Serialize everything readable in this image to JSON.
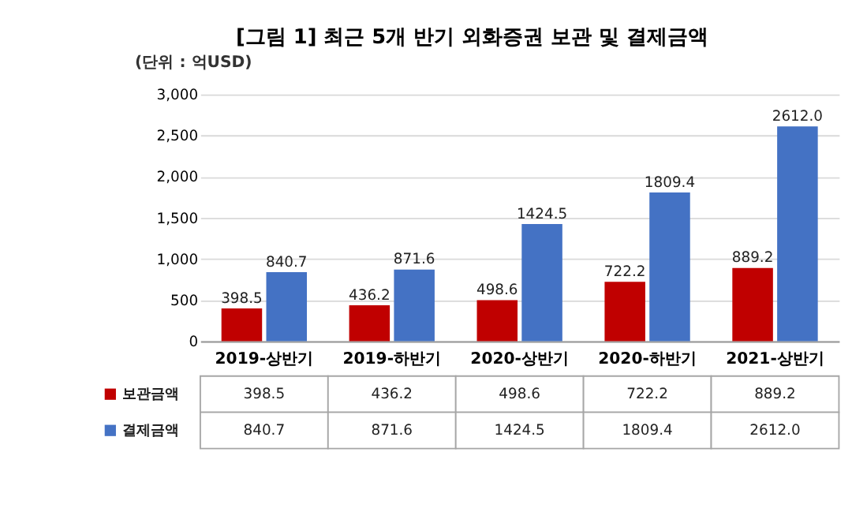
{
  "chart_data": {
    "type": "bar",
    "title": "[그림 1] 최근 5개 반기 외화증권 보관 및 결제금액",
    "annotations": [
      "(단위 : 억USD)"
    ],
    "categories": [
      "2019-상반기",
      "2019-하반기",
      "2020-상반기",
      "2020-하반기",
      "2021-상반기"
    ],
    "series": [
      {
        "name": "보관금액",
        "color": "#c00000",
        "values": [
          398.5,
          436.2,
          498.6,
          722.2,
          889.2
        ],
        "value_labels": [
          "398.5",
          "436.2",
          "498.6",
          "722.2",
          "889.2"
        ]
      },
      {
        "name": "결제금액",
        "color": "#4472c4",
        "values": [
          840.7,
          871.6,
          1424.5,
          1809.4,
          2612
        ],
        "value_labels": [
          "840.7",
          "871.6",
          "1424.5",
          "1809.4",
          "2612.0"
        ]
      }
    ],
    "ylim": [
      0,
      3000
    ],
    "yticks": [
      0,
      500,
      {
        "value": 1000,
        "label": "1,000"
      },
      {
        "value": 1500,
        "label": "1,500"
      },
      {
        "value": 2000,
        "label": "2,000"
      },
      {
        "value": 2500,
        "label": "2,500"
      },
      {
        "value": 3000,
        "label": "3,000"
      }
    ],
    "grid": "y",
    "legend": "bottom"
  }
}
